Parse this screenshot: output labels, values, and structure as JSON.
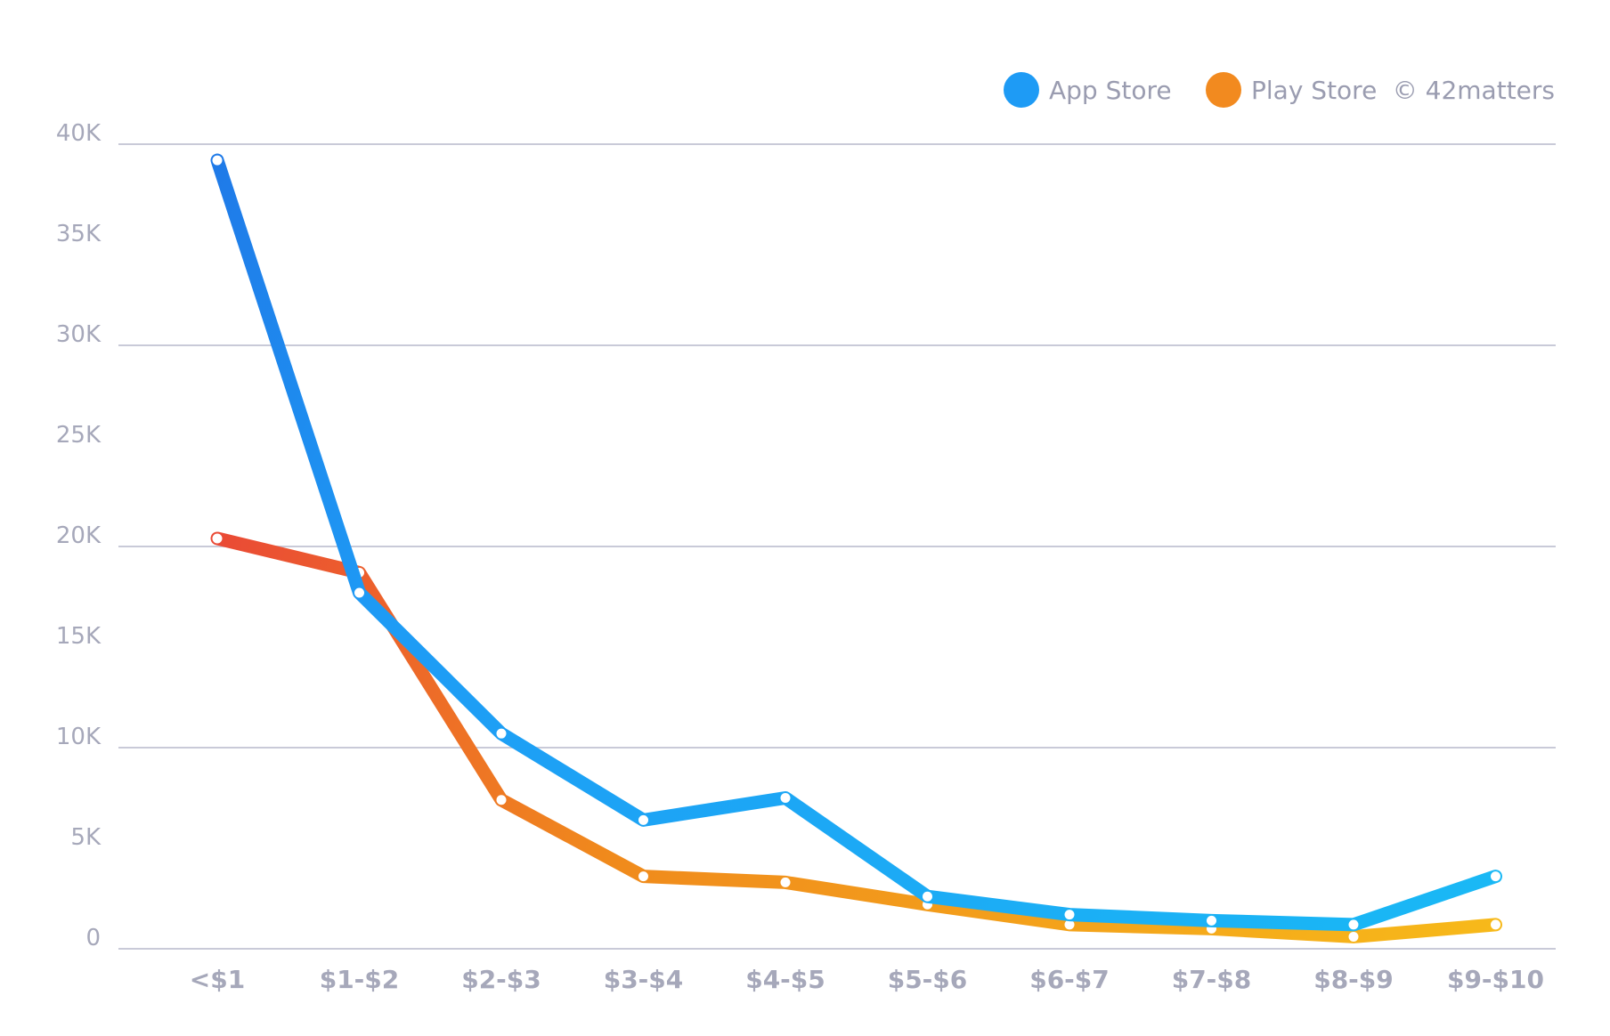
{
  "chart_data": {
    "type": "line",
    "title": "",
    "xlabel": "",
    "ylabel": "",
    "categories": [
      "<$1",
      "$1-$2",
      "$2-$3",
      "$3-$4",
      "$4-$5",
      "$5-$6",
      "$6-$7",
      "$7-$8",
      "$8-$9",
      "$9-$10"
    ],
    "ylim": [
      0,
      40000
    ],
    "yticks": [
      0,
      5000,
      10000,
      15000,
      20000,
      25000,
      30000,
      35000,
      40000
    ],
    "ytick_labels": [
      "0",
      "5K",
      "10K",
      "15K",
      "20K",
      "25K",
      "30K",
      "35K",
      "40K"
    ],
    "gridlines": [
      0,
      10000,
      20000,
      30000,
      40000
    ],
    "series": [
      {
        "name": "App Store",
        "color": "#1e9bf5",
        "gradient": [
          "#1f7ae8",
          "#1ab8f5"
        ],
        "values": [
          39200,
          17700,
          10700,
          6400,
          7500,
          2600,
          1700,
          1400,
          1200,
          3600
        ]
      },
      {
        "name": "Play Store",
        "color": "#f28a1f",
        "gradient": [
          "#ea4a35",
          "#f7b91a"
        ],
        "values": [
          20400,
          18700,
          7400,
          3600,
          3300,
          2200,
          1200,
          1000,
          600,
          1200
        ]
      }
    ],
    "legend": {
      "position": "top-right",
      "entries": [
        "App Store",
        "Play Store"
      ]
    },
    "credit": "© 42matters"
  }
}
